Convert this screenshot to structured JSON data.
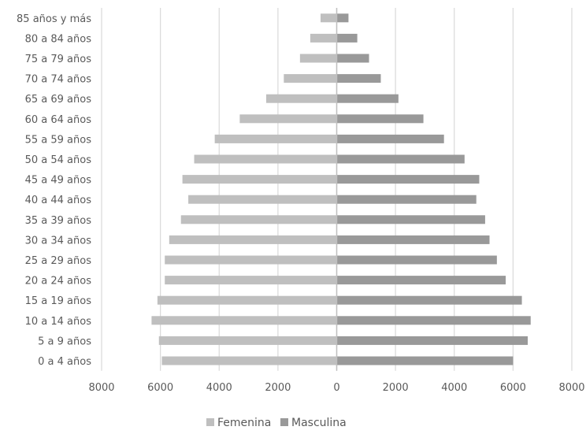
{
  "chart_data": {
    "type": "bar",
    "orientation": "horizontal",
    "categories": [
      "0 a 4 años",
      "5 a 9 años",
      "10 a 14 años",
      "15 a 19 años",
      "20 a 24 años",
      "25 a 29 años",
      "30 a 34 años",
      "35 a 39 años",
      "40 a 44 años",
      "45 a 49 años",
      "50 a 54 años",
      "55 a 59 años",
      "60 a 64 años",
      "65 a 69 años",
      "70 a 74 años",
      "75 a 79 años",
      "80 a 84 años",
      "85 años y más"
    ],
    "series": [
      {
        "name": "Femenina",
        "color": "#bfbfbf",
        "values": [
          5950,
          6050,
          6300,
          6100,
          5850,
          5850,
          5700,
          5300,
          5050,
          5250,
          4850,
          4150,
          3300,
          2400,
          1800,
          1250,
          900,
          550
        ]
      },
      {
        "name": "Masculina",
        "color": "#999999",
        "values": [
          6000,
          6500,
          6600,
          6300,
          5750,
          5450,
          5200,
          5050,
          4750,
          4850,
          4350,
          3650,
          2950,
          2100,
          1500,
          1100,
          700,
          400
        ]
      }
    ],
    "xticks": [
      "8000",
      "6000",
      "4000",
      "2000",
      "0",
      "2000",
      "4000",
      "6000",
      "8000"
    ],
    "xlim": [
      -8000,
      8000
    ],
    "grid": "vertical",
    "legend_position": "bottom"
  }
}
